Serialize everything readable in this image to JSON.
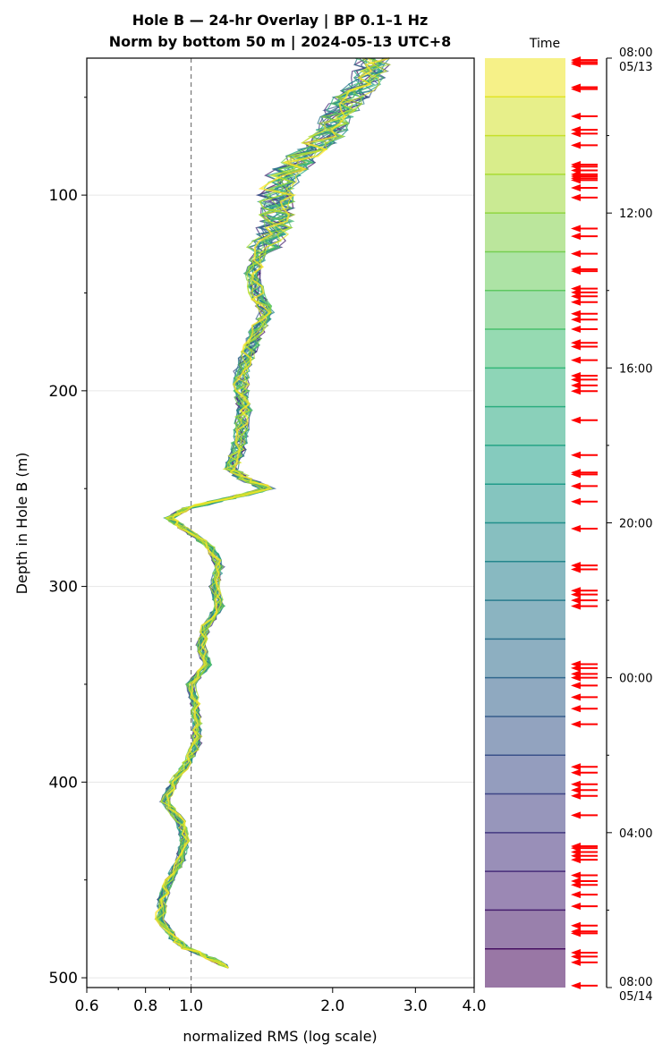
{
  "chart_data": {
    "type": "line",
    "title_line1": "Hole B — 24-hr Overlay  |  BP 0.1–1 Hz",
    "title_line2": "Norm by bottom 50 m  |  2024-05-13 UTC+8",
    "xlabel": "normalized RMS  (log scale)",
    "ylabel": "Depth in Hole B (m)",
    "xscale": "log",
    "xlim": [
      0.6,
      4.0
    ],
    "ylim": [
      505,
      30
    ],
    "x_ticks": [
      {
        "value": 0.6,
        "label": "0.6"
      },
      {
        "value": 0.8,
        "label": "0.8"
      },
      {
        "value": 1.0,
        "label": "1.0"
      },
      {
        "value": 2.0,
        "label": "2.0"
      },
      {
        "value": 3.0,
        "label": "3.0"
      },
      {
        "value": 4.0,
        "label": "4.0"
      }
    ],
    "y_ticks": [
      {
        "value": 100,
        "label": "100"
      },
      {
        "value": 200,
        "label": "200"
      },
      {
        "value": 300,
        "label": "300"
      },
      {
        "value": 400,
        "label": "400"
      },
      {
        "value": 500,
        "label": "500"
      }
    ],
    "reference_line_x": 1.0,
    "profile": {
      "depth": [
        30,
        40,
        50,
        60,
        70,
        80,
        90,
        100,
        110,
        120,
        130,
        140,
        150,
        160,
        170,
        180,
        190,
        200,
        210,
        220,
        230,
        240,
        245,
        250,
        255,
        260,
        265,
        270,
        280,
        290,
        300,
        310,
        320,
        330,
        340,
        350,
        360,
        370,
        380,
        390,
        400,
        410,
        420,
        430,
        440,
        450,
        460,
        470,
        480,
        485,
        490,
        495
      ],
      "rms": [
        2.45,
        2.4,
        2.2,
        2.05,
        1.95,
        1.75,
        1.58,
        1.52,
        1.52,
        1.5,
        1.4,
        1.35,
        1.38,
        1.45,
        1.38,
        1.33,
        1.28,
        1.28,
        1.3,
        1.28,
        1.26,
        1.22,
        1.3,
        1.45,
        1.2,
        0.98,
        0.9,
        0.96,
        1.1,
        1.15,
        1.12,
        1.15,
        1.08,
        1.05,
        1.08,
        1.0,
        1.02,
        1.03,
        1.03,
        0.98,
        0.92,
        0.88,
        0.95,
        0.97,
        0.95,
        0.9,
        0.87,
        0.86,
        0.92,
        0.98,
        1.1,
        1.2
      ]
    },
    "n_series": 24,
    "colorbar": {
      "label": "Time",
      "ticks": [
        {
          "label": "08:00",
          "sublabel": "05/13",
          "hour": 0
        },
        {
          "label": "12:00",
          "hour": 4
        },
        {
          "label": "16:00",
          "hour": 8
        },
        {
          "label": "20:00",
          "hour": 12
        },
        {
          "label": "00:00",
          "hour": 16
        },
        {
          "label": "04:00",
          "hour": 20
        },
        {
          "label": "08:00",
          "sublabel": "05/14",
          "hour": 24
        }
      ]
    },
    "event_arrows_hours": [
      0.05,
      0.1,
      0.15,
      0.75,
      0.8,
      1.5,
      1.85,
      1.95,
      2.25,
      2.75,
      2.8,
      2.9,
      3.0,
      3.05,
      3.1,
      3.15,
      3.35,
      3.6,
      4.4,
      4.6,
      5.05,
      5.45,
      5.5,
      5.95,
      6.05,
      6.15,
      6.3,
      6.6,
      6.75,
      7.0,
      7.35,
      7.45,
      7.8,
      8.2,
      8.3,
      8.45,
      8.6,
      9.35,
      10.25,
      10.7,
      10.75,
      11.05,
      11.45,
      12.15,
      13.1,
      13.2,
      13.75,
      13.85,
      14.0,
      14.15,
      15.65,
      15.75,
      15.9,
      16.0,
      16.2,
      16.5,
      16.8,
      17.2,
      18.3,
      18.45,
      18.75,
      18.9,
      19.05,
      19.55,
      20.35,
      20.4,
      20.5,
      20.6,
      20.7,
      21.1,
      21.25,
      21.35,
      21.6,
      21.9,
      22.4,
      22.55,
      22.6,
      23.1,
      23.2,
      23.35,
      23.95
    ]
  }
}
